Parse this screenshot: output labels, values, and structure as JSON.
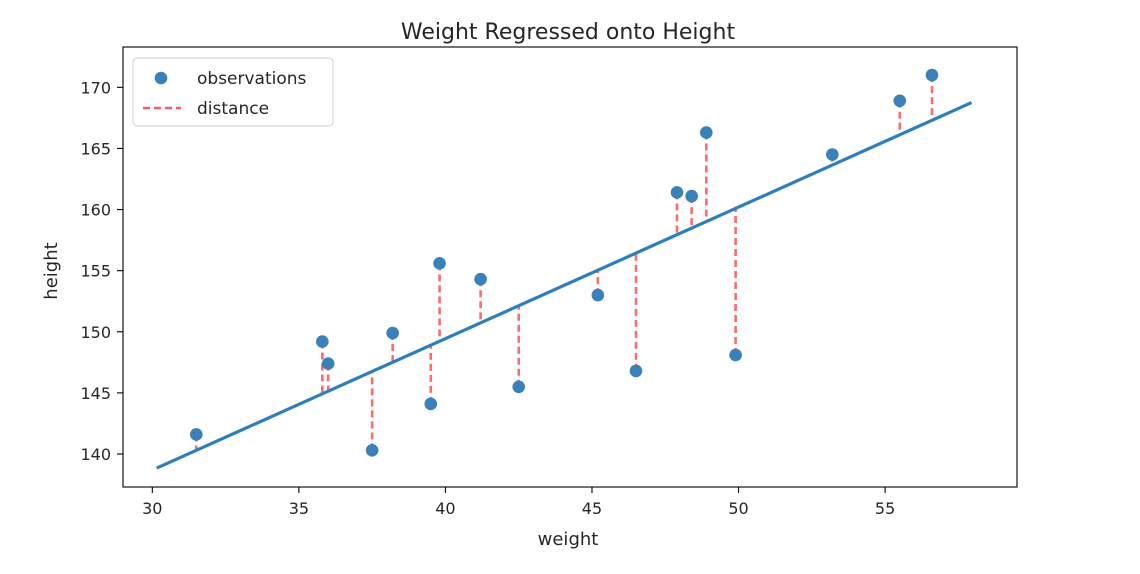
{
  "chart_data": {
    "type": "scatter",
    "title": "Weight Regressed onto Height",
    "xlabel": "weight",
    "ylabel": "height",
    "xlim": [
      29,
      59.5
    ],
    "ylim": [
      137.3,
      173.3
    ],
    "xticks": [
      30,
      35,
      40,
      45,
      50,
      55
    ],
    "yticks": [
      140,
      145,
      150,
      155,
      160,
      165,
      170
    ],
    "grid": false,
    "legend": {
      "placement": "top-left",
      "entries": [
        {
          "label": "observations",
          "kind": "marker"
        },
        {
          "label": "distance",
          "kind": "dashed-line"
        }
      ]
    },
    "colors": {
      "observations": "#3a80b9",
      "distance": "#ff5c5c",
      "fit_line": "#2f7ebc"
    },
    "series": [
      {
        "name": "observations",
        "kind": "scatter",
        "points": [
          {
            "x": 31.5,
            "y": 141.6
          },
          {
            "x": 35.8,
            "y": 149.2
          },
          {
            "x": 36.0,
            "y": 147.4
          },
          {
            "x": 37.5,
            "y": 140.3
          },
          {
            "x": 38.2,
            "y": 149.9
          },
          {
            "x": 39.5,
            "y": 144.1
          },
          {
            "x": 39.8,
            "y": 155.6
          },
          {
            "x": 41.2,
            "y": 154.3
          },
          {
            "x": 42.5,
            "y": 145.5
          },
          {
            "x": 45.2,
            "y": 153.0
          },
          {
            "x": 46.5,
            "y": 146.8
          },
          {
            "x": 47.9,
            "y": 161.4
          },
          {
            "x": 48.4,
            "y": 161.1
          },
          {
            "x": 48.9,
            "y": 166.3
          },
          {
            "x": 49.9,
            "y": 148.1
          },
          {
            "x": 53.2,
            "y": 164.5
          },
          {
            "x": 55.5,
            "y": 168.9
          },
          {
            "x": 56.6,
            "y": 171.0
          }
        ]
      },
      {
        "name": "fit",
        "kind": "line",
        "points": [
          {
            "x": 30.2,
            "y": 138.9
          },
          {
            "x": 57.9,
            "y": 168.7
          }
        ]
      }
    ]
  }
}
